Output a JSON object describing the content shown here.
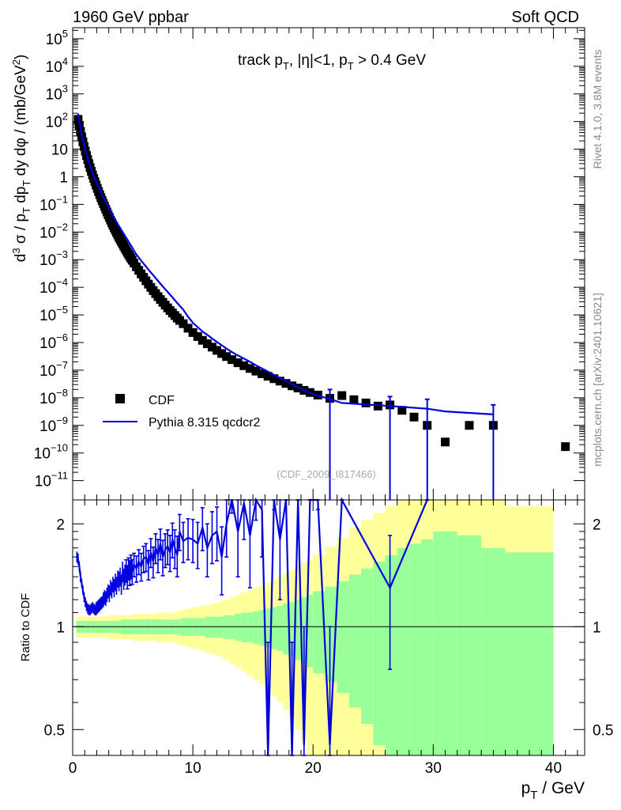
{
  "header": {
    "left": "1960 GeV ppbar",
    "right": "Soft QCD"
  },
  "side_text": {
    "rivet": "Rivet 4.1.0,  3.8M events",
    "mcplots": "mcplots.cern.ch [arXiv:2401.10621]"
  },
  "colors": {
    "data": "#000000",
    "mc": "#0000dd",
    "band_inner": "#99ff99",
    "band_outer": "#ffff99"
  },
  "chart_data": [
    {
      "type": "scatter",
      "title": "track p_T, |η|<1, p_T > 0.4 GeV",
      "watermark": "(CDF_2009_I817466)",
      "ylabel": "d^3σ / p_T dp_T dy dφ / (mb/GeV^2)",
      "yscale": "log",
      "xlim": [
        0,
        42.6
      ],
      "ylim": [
        2e-12,
        250000.0
      ],
      "y_ticks": [
        {
          "v": 100000.0,
          "base": "10",
          "exp": "5"
        },
        {
          "v": 10000.0,
          "base": "10",
          "exp": "4"
        },
        {
          "v": 1000.0,
          "base": "10",
          "exp": "3"
        },
        {
          "v": 100.0,
          "base": "10",
          "exp": "2"
        },
        {
          "v": 10,
          "base": "10",
          "exp": ""
        },
        {
          "v": 1,
          "base": "1",
          "exp": ""
        },
        {
          "v": 0.1,
          "base": "10",
          "exp": "−1"
        },
        {
          "v": 0.01,
          "base": "10",
          "exp": "−2"
        },
        {
          "v": 0.001,
          "base": "10",
          "exp": "−3"
        },
        {
          "v": 0.0001,
          "base": "10",
          "exp": "−4"
        },
        {
          "v": 1e-05,
          "base": "10",
          "exp": "−5"
        },
        {
          "v": 1e-06,
          "base": "10",
          "exp": "−6"
        },
        {
          "v": 1e-07,
          "base": "10",
          "exp": "−7"
        },
        {
          "v": 1e-08,
          "base": "10",
          "exp": "−8"
        },
        {
          "v": 1e-09,
          "base": "10",
          "exp": "−9"
        },
        {
          "v": 1e-10,
          "base": "10",
          "exp": "−10"
        },
        {
          "v": 1e-11,
          "base": "10",
          "exp": "−11"
        }
      ],
      "legend": [
        {
          "label": "CDF",
          "kind": "data"
        },
        {
          "label": "Pythia 8.315 qcdcr2",
          "kind": "mc"
        }
      ],
      "series": [
        {
          "name": "CDF",
          "x": [
            0.45,
            0.55,
            0.65,
            0.75,
            0.85,
            0.95,
            1.05,
            1.15,
            1.25,
            1.35,
            1.45,
            1.55,
            1.65,
            1.75,
            1.85,
            1.95,
            2.05,
            2.15,
            2.25,
            2.35,
            2.45,
            2.55,
            2.65,
            2.75,
            2.85,
            2.95,
            3.05,
            3.15,
            3.25,
            3.35,
            3.45,
            3.55,
            3.65,
            3.75,
            3.85,
            3.95,
            4.05,
            4.15,
            4.25,
            4.35,
            4.45,
            4.55,
            4.65,
            4.75,
            4.85,
            4.95,
            5.1,
            5.3,
            5.5,
            5.7,
            5.9,
            6.1,
            6.3,
            6.5,
            6.7,
            6.9,
            7.1,
            7.3,
            7.5,
            7.7,
            7.9,
            8.1,
            8.3,
            8.5,
            8.7,
            8.9,
            9.2,
            9.6,
            10.0,
            10.4,
            10.8,
            11.2,
            11.6,
            12.0,
            12.4,
            12.8,
            13.25,
            13.75,
            14.25,
            14.75,
            15.25,
            15.75,
            16.25,
            16.75,
            17.25,
            17.75,
            18.25,
            18.75,
            19.25,
            19.75,
            20.4,
            21.4,
            22.4,
            23.4,
            24.4,
            25.4,
            26.4,
            27.4,
            28.4,
            29.5,
            31.0,
            33.0,
            35.0,
            41.0
          ],
          "y": [
            120,
            72,
            44,
            28,
            18.5,
            12.5,
            8.5,
            5.9,
            4.2,
            3.0,
            2.15,
            1.58,
            1.17,
            0.87,
            0.66,
            0.5,
            0.38,
            0.29,
            0.225,
            0.175,
            0.137,
            0.108,
            0.085,
            0.067,
            0.053,
            0.042,
            0.034,
            0.027,
            0.0218,
            0.0176,
            0.0143,
            0.0117,
            0.0096,
            0.0079,
            0.0065,
            0.0054,
            0.0045,
            0.00375,
            0.00313,
            0.00262,
            0.0022,
            0.00185,
            0.00156,
            0.00132,
            0.00112,
            0.00095,
            0.00075,
            0.00055,
            0.00041,
            0.000305,
            0.000228,
            0.000172,
            0.00013,
            9.9e-05,
            7.6e-05,
            5.9e-05,
            4.6e-05,
            3.6e-05,
            2.85e-05,
            2.25e-05,
            1.8e-05,
            1.45e-05,
            1.17e-05,
            9.5e-06,
            7.7e-06,
            6.3e-06,
            4.8e-06,
            3.3e-06,
            2.3e-06,
            1.65e-06,
            1.2e-06,
            9e-07,
            6.8e-07,
            5.2e-07,
            4e-07,
            3.1e-07,
            2.4e-07,
            1.85e-07,
            1.45e-07,
            1.15e-07,
            9.2e-08,
            7.4e-08,
            6e-08,
            4.9e-08,
            4e-08,
            3.3e-08,
            2.7e-08,
            2.25e-08,
            1.85e-08,
            1.55e-08,
            1.25e-08,
            9.5e-09,
            1.2e-08,
            8.5e-09,
            6.5e-09,
            5e-09,
            5.5e-09,
            3.5e-09,
            2e-09,
            1e-09,
            2.5e-10,
            1e-09,
            1e-09,
            1.7e-10
          ]
        },
        {
          "name": "Pythia 8.315 qcdcr2",
          "x": [
            0.45,
            0.55,
            0.65,
            0.75,
            0.85,
            0.95,
            1.05,
            1.15,
            1.25,
            1.35,
            1.45,
            1.55,
            1.65,
            1.75,
            1.85,
            1.95,
            2.05,
            2.15,
            2.25,
            2.35,
            2.45,
            2.55,
            2.65,
            2.75,
            2.85,
            2.95,
            3.05,
            3.15,
            3.25,
            3.35,
            3.45,
            3.55,
            3.65,
            3.75,
            3.85,
            3.95,
            4.05,
            4.15,
            4.25,
            4.35,
            4.45,
            4.55,
            4.65,
            4.75,
            4.85,
            4.95,
            5.1,
            5.3,
            5.5,
            5.7,
            5.9,
            6.1,
            6.3,
            6.5,
            6.7,
            6.9,
            7.1,
            7.3,
            7.5,
            7.7,
            7.9,
            8.1,
            8.3,
            8.5,
            8.7,
            8.9,
            9.2,
            9.6,
            10.0,
            10.4,
            10.8,
            11.2,
            11.6,
            12.0,
            12.4,
            12.8,
            13.25,
            13.75,
            14.25,
            14.75,
            15.25,
            15.75,
            16.25,
            16.75,
            17.25,
            17.75,
            18.25,
            18.75,
            19.25,
            19.75,
            20.4,
            21.4,
            22.4,
            26.4,
            29.5,
            31.0,
            35.0
          ],
          "y": [
            190,
            104,
            57,
            35,
            21.8,
            14.1,
            9.4,
            6.5,
            4.6,
            3.4,
            2.5,
            1.9,
            1.45,
            1.12,
            0.87,
            0.69,
            0.54,
            0.43,
            0.35,
            0.28,
            0.225,
            0.185,
            0.15,
            0.124,
            0.1,
            0.082,
            0.068,
            0.056,
            0.047,
            0.039,
            0.033,
            0.0275,
            0.023,
            0.0195,
            0.0165,
            0.014,
            0.0119,
            0.0101,
            0.0086,
            0.0073,
            0.0062,
            0.0053,
            0.0045,
            0.0038,
            0.00325,
            0.00278,
            0.0021,
            0.00155,
            0.00118,
            0.00092,
            0.00072,
            0.00056,
            0.00044,
            0.000345,
            0.000273,
            0.000215,
            0.00017,
            0.000135,
            0.000107,
            8.5e-05,
            6.8e-05,
            5.4e-05,
            4.3e-05,
            3.4e-05,
            2.7e-05,
            2.15e-05,
            1.55e-05,
            8.5e-06,
            5.2e-06,
            3.6e-06,
            2.5e-06,
            1.9e-06,
            1.4e-06,
            1.05e-06,
            8e-07,
            6e-07,
            4.5e-07,
            3.4e-07,
            2.6e-07,
            2e-07,
            1.5e-07,
            1.15e-07,
            8.8e-08,
            6.8e-08,
            5.2e-08,
            4e-08,
            3.1e-08,
            2.4e-08,
            1.9e-08,
            1.5e-08,
            1.2e-08,
            9e-09,
            6.5e-09,
            5e-09,
            4e-09,
            3.2e-09,
            2.5e-09
          ]
        }
      ]
    },
    {
      "type": "line",
      "ylabel": "Ratio to CDF",
      "xlabel": "p_T / GeV",
      "yscale": "log",
      "xlim": [
        0,
        42.6
      ],
      "ylim": [
        0.42,
        2.35
      ],
      "y_ticks": [
        0.5,
        1,
        2
      ],
      "x_ticks": [
        0,
        10,
        20,
        30,
        40
      ],
      "reference": 1,
      "band_edges": [
        0.3,
        0.7,
        1.0,
        1.5,
        2.0,
        2.5,
        3.0,
        3.5,
        4.0,
        4.5,
        5.0,
        5.5,
        6.0,
        6.5,
        7.0,
        7.5,
        8.0,
        8.5,
        9.0,
        9.5,
        10.0,
        10.5,
        11.0,
        11.5,
        12.0,
        12.5,
        13.0,
        13.5,
        14.0,
        14.5,
        15.0,
        15.5,
        16.0,
        16.5,
        17.0,
        17.5,
        18.0,
        18.5,
        19.0,
        19.5,
        20.0,
        21.0,
        22.0,
        23.0,
        24.0,
        25.0,
        26.0,
        27.0,
        28.0,
        29.0,
        30.0,
        32.0,
        34.0,
        36.0,
        40.0,
        42.0
      ],
      "band_inner": [
        0.04,
        0.04,
        0.04,
        0.04,
        0.04,
        0.04,
        0.04,
        0.04,
        0.05,
        0.05,
        0.05,
        0.05,
        0.05,
        0.05,
        0.05,
        0.05,
        0.05,
        0.05,
        0.06,
        0.06,
        0.06,
        0.06,
        0.07,
        0.07,
        0.07,
        0.08,
        0.08,
        0.09,
        0.1,
        0.1,
        0.11,
        0.12,
        0.13,
        0.14,
        0.15,
        0.17,
        0.18,
        0.2,
        0.22,
        0.24,
        0.27,
        0.31,
        0.36,
        0.42,
        0.48,
        0.55,
        0.62,
        0.7,
        0.75,
        0.8,
        0.9,
        0.85,
        0.7,
        0.65,
        0,
        0.95
      ],
      "band_outer": [
        0.07,
        0.07,
        0.07,
        0.07,
        0.07,
        0.07,
        0.08,
        0.08,
        0.08,
        0.08,
        0.09,
        0.09,
        0.09,
        0.09,
        0.1,
        0.1,
        0.1,
        0.11,
        0.12,
        0.13,
        0.14,
        0.15,
        0.16,
        0.17,
        0.18,
        0.2,
        0.22,
        0.24,
        0.26,
        0.28,
        0.3,
        0.32,
        0.34,
        0.37,
        0.4,
        0.43,
        0.46,
        0.5,
        0.54,
        0.58,
        0.63,
        0.72,
        0.82,
        0.95,
        1.05,
        1.15,
        1.25,
        1.4,
        1.6,
        1.7,
        1.9,
        1.7,
        1.4,
        1.25,
        0,
        1.9
      ],
      "series": [
        {
          "name": "Pythia 8.315 qcdcr2 / CDF",
          "x": [
            0.35,
            0.45,
            0.55,
            0.65,
            0.75,
            0.85,
            0.95,
            1.05,
            1.15,
            1.25,
            1.35,
            1.45,
            1.55,
            1.65,
            1.75,
            1.85,
            1.95,
            2.05,
            2.15,
            2.25,
            2.35,
            2.45,
            2.55,
            2.65,
            2.75,
            2.85,
            2.95,
            3.05,
            3.15,
            3.25,
            3.35,
            3.45,
            3.55,
            3.65,
            3.75,
            3.85,
            3.95,
            4.05,
            4.15,
            4.25,
            4.35,
            4.45,
            4.55,
            4.65,
            4.75,
            4.85,
            4.95,
            5.1,
            5.3,
            5.5,
            5.7,
            5.9,
            6.1,
            6.3,
            6.5,
            6.7,
            6.9,
            7.1,
            7.3,
            7.5,
            7.7,
            7.9,
            8.1,
            8.3,
            8.5,
            8.7,
            8.9,
            9.2,
            9.6,
            10.0,
            10.4,
            10.8,
            11.2,
            11.6,
            12.0,
            12.4,
            12.8,
            13.25,
            13.75,
            14.25,
            14.75,
            15.25,
            15.75,
            16.25,
            16.75,
            17.25,
            17.75,
            18.25,
            18.75,
            19.25,
            19.75,
            20.4,
            21.4,
            22.4,
            26.4,
            29.5
          ],
          "y": [
            1.6,
            1.58,
            1.5,
            1.4,
            1.34,
            1.28,
            1.22,
            1.18,
            1.15,
            1.13,
            1.12,
            1.12,
            1.13,
            1.14,
            1.13,
            1.12,
            1.13,
            1.14,
            1.15,
            1.16,
            1.17,
            1.18,
            1.2,
            1.22,
            1.21,
            1.24,
            1.27,
            1.25,
            1.3,
            1.28,
            1.33,
            1.3,
            1.35,
            1.32,
            1.38,
            1.36,
            1.4,
            1.33,
            1.45,
            1.38,
            1.42,
            1.46,
            1.4,
            1.48,
            1.44,
            1.5,
            1.45,
            1.52,
            1.48,
            1.55,
            1.5,
            1.58,
            1.6,
            1.52,
            1.65,
            1.55,
            1.7,
            1.62,
            1.75,
            1.6,
            1.68,
            1.72,
            1.65,
            1.8,
            1.7,
            1.62,
            1.9,
            1.78,
            1.82,
            1.8,
            1.75,
            1.95,
            1.7,
            1.85,
            1.9,
            1.6,
            2.0,
            2.6,
            1.9,
            2.3,
            1.85,
            2.6,
            2.2,
            0.35,
            2.8,
            1.8,
            3.0,
            0.35,
            3.0,
            0.45,
            3.0,
            2.8,
            0.45,
            3.0,
            1.3,
            3.0
          ],
          "err": [
            0.06,
            0.06,
            0.05,
            0.05,
            0.04,
            0.04,
            0.04,
            0.04,
            0.04,
            0.04,
            0.04,
            0.04,
            0.04,
            0.04,
            0.04,
            0.04,
            0.05,
            0.05,
            0.05,
            0.05,
            0.05,
            0.05,
            0.06,
            0.06,
            0.06,
            0.06,
            0.06,
            0.07,
            0.07,
            0.07,
            0.07,
            0.08,
            0.08,
            0.08,
            0.08,
            0.09,
            0.09,
            0.09,
            0.1,
            0.1,
            0.1,
            0.11,
            0.11,
            0.11,
            0.12,
            0.12,
            0.12,
            0.12,
            0.13,
            0.13,
            0.14,
            0.14,
            0.15,
            0.15,
            0.16,
            0.16,
            0.17,
            0.18,
            0.18,
            0.19,
            0.19,
            0.2,
            0.2,
            0.21,
            0.22,
            0.22,
            0.23,
            0.24,
            0.25,
            0.26,
            0.27,
            0.28,
            0.3,
            0.32,
            0.34,
            0.36,
            0.4,
            0.45,
            0.5,
            0.5,
            0.55,
            0.55,
            0.6,
            0.55,
            0.6,
            0.6,
            0.6,
            0.55,
            0.6,
            0.55,
            0.6,
            0.6,
            0.55,
            0.6,
            0.55,
            0.6
          ]
        }
      ]
    }
  ]
}
